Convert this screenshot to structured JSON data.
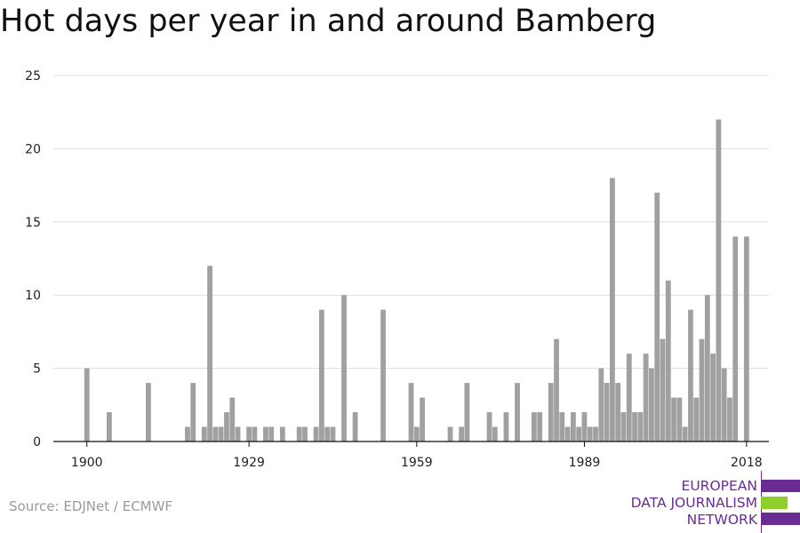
{
  "title": "Hot days per year in and around Bamberg",
  "source": "Source: EDJNet / ECMWF",
  "logo": {
    "lines": [
      "EUROPEAN",
      "DATA JOURNALISM",
      "NETWORK"
    ],
    "colors": {
      "purple": "#6b2c91",
      "green": "#8fcf2b"
    }
  },
  "colors": {
    "bar": "#a0a0a0",
    "grid": "#dddddd",
    "axis": "#111111"
  },
  "chart_data": {
    "type": "bar",
    "xlabel": "",
    "ylabel": "",
    "ylim": [
      0,
      25
    ],
    "xlim": [
      1894,
      2022
    ],
    "yticks": [
      0,
      5,
      10,
      15,
      20,
      25
    ],
    "xticks": [
      1900,
      1929,
      1959,
      1989,
      2018
    ],
    "grid": true,
    "x": [
      1900,
      1904,
      1911,
      1918,
      1919,
      1921,
      1922,
      1923,
      1924,
      1925,
      1926,
      1927,
      1929,
      1930,
      1932,
      1933,
      1935,
      1938,
      1939,
      1941,
      1942,
      1943,
      1944,
      1946,
      1948,
      1953,
      1958,
      1959,
      1960,
      1965,
      1967,
      1968,
      1972,
      1973,
      1975,
      1977,
      1980,
      1981,
      1983,
      1984,
      1985,
      1986,
      1987,
      1988,
      1989,
      1990,
      1991,
      1992,
      1993,
      1994,
      1995,
      1996,
      1997,
      1998,
      1999,
      2000,
      2001,
      2002,
      2003,
      2004,
      2005,
      2006,
      2007,
      2008,
      2009,
      2010,
      2011,
      2012,
      2013,
      2014,
      2015,
      2016,
      2017,
      2018
    ],
    "values": [
      5,
      2,
      4,
      1,
      4,
      1,
      12,
      1,
      1,
      2,
      3,
      1,
      1,
      1,
      1,
      1,
      1,
      1,
      1,
      1,
      9,
      1,
      1,
      10,
      2,
      9,
      4,
      1,
      3,
      1,
      1,
      4,
      2,
      1,
      2,
      4,
      2,
      2,
      4,
      7,
      2,
      1,
      2,
      1,
      2,
      1,
      1,
      5,
      4,
      18,
      4,
      2,
      6,
      2,
      2,
      6,
      5,
      17,
      7,
      11,
      3,
      3,
      1,
      9,
      3,
      7,
      10,
      6,
      22,
      5,
      3,
      14,
      0,
      14
    ]
  }
}
